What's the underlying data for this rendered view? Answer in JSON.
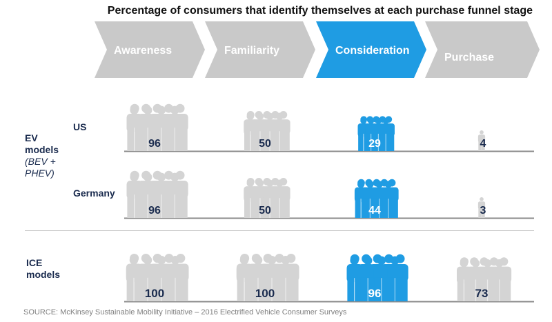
{
  "title": "Percentage of consumers that identify themselves at each purchase funnel stage",
  "colors": {
    "grey": "#d4d4d4",
    "chevron_grey": "#c9c9c9",
    "blue": "#1f9ce3",
    "navy": "#1a2b4e",
    "axis": "#8a8a8a"
  },
  "row_labels": {
    "ev_line1": "EV",
    "ev_line2": "models",
    "ev_line3": "(BEV +",
    "ev_line4": "PHEV)",
    "us": "US",
    "germany": "Germany",
    "ice_line1": "ICE",
    "ice_line2": "models"
  },
  "source": "SOURCE: McKinsey Sustainable Mobility Initiative – 2016 Electrified Vehicle Consumer Surveys",
  "chart_data": {
    "type": "table",
    "title": "Percentage of consumers that identify themselves at each purchase funnel stage",
    "categories": [
      "Awareness",
      "Familiarity",
      "Consideration",
      "Purchase"
    ],
    "highlighted_category": "Consideration",
    "series": [
      {
        "name": "US",
        "values": [
          96,
          50,
          29,
          4
        ]
      },
      {
        "name": "Germany",
        "values": [
          96,
          50,
          44,
          3
        ]
      },
      {
        "name": "ICE models",
        "values": [
          100,
          100,
          96,
          73
        ]
      }
    ],
    "unit": "%"
  }
}
